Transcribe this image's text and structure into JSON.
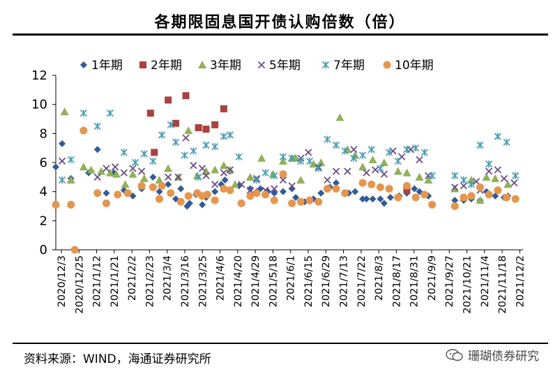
{
  "header": {
    "title": "各期限固息国开债认购倍数（倍）"
  },
  "footer": {
    "source": "资料来源：WIND，海通证券研究所",
    "watermark": "珊瑚债券研究"
  },
  "chart_data": {
    "type": "scatter",
    "title": "各期限固息国开债认购倍数（倍）",
    "ylim": [
      0,
      12
    ],
    "yticks": [
      0,
      2,
      4,
      6,
      8,
      10,
      12
    ],
    "xlim": [
      "2020-12-03",
      "2021-12-08"
    ],
    "x_tick_labels": [
      "2020/12/3",
      "2020/12/25",
      "2021/1/12",
      "2021/1/21",
      "2021/2/2",
      "2021/2/23",
      "2021/3/4",
      "2021/3/16",
      "2021/3/25",
      "2021/4/6",
      "2021/4/20",
      "2021/4/29",
      "2021/5/18",
      "2021/6/1",
      "2021/6/15",
      "2021/6/29",
      "2021/7/13",
      "2021/7/22",
      "2021/8/3",
      "2021/8/17",
      "2021/8/31",
      "2021/9/9",
      "2021/9/27",
      "2021/10/21",
      "2021/11/4",
      "2021/11/18",
      "2021/12/2"
    ],
    "legend_position": "top",
    "series": [
      {
        "name": "1年期",
        "marker": "diamond",
        "color": "#2E5B9F",
        "points": [
          [
            "2020-12-03",
            5.7
          ],
          [
            "2020-12-08",
            7.3
          ],
          [
            "2020-12-15",
            4.9
          ],
          [
            "2020-12-29",
            5.3
          ],
          [
            "2021-01-05",
            6.9
          ],
          [
            "2021-01-12",
            3.9
          ],
          [
            "2021-01-18",
            5.3
          ],
          [
            "2021-01-26",
            4.1
          ],
          [
            "2021-02-02",
            3.7
          ],
          [
            "2021-02-09",
            4.2
          ],
          [
            "2021-02-18",
            5.0
          ],
          [
            "2021-02-23",
            4.0
          ],
          [
            "2021-03-02",
            4.5
          ],
          [
            "2021-03-08",
            3.5
          ],
          [
            "2021-03-12",
            4.2
          ],
          [
            "2021-03-17",
            3.0
          ],
          [
            "2021-03-19",
            3.2
          ],
          [
            "2021-03-24",
            3.8
          ],
          [
            "2021-03-29",
            3.1
          ],
          [
            "2021-04-01",
            3.6
          ],
          [
            "2021-04-08",
            4.0
          ],
          [
            "2021-04-13",
            4.5
          ],
          [
            "2021-04-16",
            4.8
          ],
          [
            "2021-04-20",
            5.4
          ],
          [
            "2021-04-27",
            4.4
          ],
          [
            "2021-05-06",
            4.2
          ],
          [
            "2021-05-11",
            4.0
          ],
          [
            "2021-05-14",
            4.2
          ],
          [
            "2021-05-20",
            4.0
          ],
          [
            "2021-05-25",
            3.9
          ],
          [
            "2021-06-01",
            4.0
          ],
          [
            "2021-06-08",
            4.2
          ],
          [
            "2021-06-11",
            3.6
          ],
          [
            "2021-06-18",
            3.3
          ],
          [
            "2021-06-25",
            3.5
          ],
          [
            "2021-07-01",
            3.9
          ],
          [
            "2021-07-08",
            4.3
          ],
          [
            "2021-07-13",
            4.6
          ],
          [
            "2021-07-20",
            3.9
          ],
          [
            "2021-07-23",
            3.9
          ],
          [
            "2021-07-28",
            4.0
          ],
          [
            "2021-08-03",
            3.5
          ],
          [
            "2021-08-06",
            3.5
          ],
          [
            "2021-08-11",
            3.5
          ],
          [
            "2021-08-17",
            3.5
          ],
          [
            "2021-08-20",
            3.2
          ],
          [
            "2021-08-25",
            3.6
          ],
          [
            "2021-09-01",
            3.7
          ],
          [
            "2021-09-07",
            3.9
          ],
          [
            "2021-09-13",
            4.2
          ],
          [
            "2021-09-17",
            4.0
          ],
          [
            "2021-09-24",
            3.7
          ],
          [
            "2021-10-15",
            3.4
          ],
          [
            "2021-10-22",
            3.4
          ],
          [
            "2021-10-28",
            3.5
          ],
          [
            "2021-11-04",
            3.4
          ],
          [
            "2021-11-09",
            4.0
          ],
          [
            "2021-11-16",
            3.7
          ],
          [
            "2021-11-23",
            3.6
          ],
          [
            "2021-11-26",
            3.7
          ]
        ]
      },
      {
        "name": "2年期",
        "marker": "square",
        "color": "#B0403E",
        "points": [
          [
            "2021-02-16",
            9.4
          ],
          [
            "2021-02-19",
            6.7
          ],
          [
            "2021-03-02",
            10.3
          ],
          [
            "2021-03-08",
            8.7
          ],
          [
            "2021-03-16",
            10.6
          ],
          [
            "2021-03-26",
            8.4
          ],
          [
            "2021-04-01",
            8.3
          ],
          [
            "2021-04-08",
            8.6
          ],
          [
            "2021-04-15",
            9.7
          ],
          [
            "2021-09-07",
            4.1
          ]
        ]
      },
      {
        "name": "3年期",
        "marker": "triangle",
        "color": "#8FB354",
        "points": [
          [
            "2020-12-10",
            9.5
          ],
          [
            "2020-12-15",
            4.8
          ],
          [
            "2020-12-25",
            5.7
          ],
          [
            "2020-12-31",
            5.5
          ],
          [
            "2021-01-08",
            5.4
          ],
          [
            "2021-01-15",
            5.3
          ],
          [
            "2021-01-20",
            5.2
          ],
          [
            "2021-01-27",
            4.5
          ],
          [
            "2021-02-02",
            5.2
          ],
          [
            "2021-02-11",
            4.9
          ],
          [
            "2021-02-23",
            4.8
          ],
          [
            "2021-03-02",
            5.6
          ],
          [
            "2021-03-10",
            5.0
          ],
          [
            "2021-03-18",
            8.2
          ],
          [
            "2021-03-25",
            5.1
          ],
          [
            "2021-04-01",
            5.4
          ],
          [
            "2021-04-08",
            5.5
          ],
          [
            "2021-04-15",
            5.8
          ],
          [
            "2021-04-20",
            5.5
          ],
          [
            "2021-04-24",
            4.5
          ],
          [
            "2021-05-06",
            5.0
          ],
          [
            "2021-05-15",
            6.3
          ],
          [
            "2021-05-24",
            5.2
          ],
          [
            "2021-06-01",
            6.1
          ],
          [
            "2021-06-08",
            6.3
          ],
          [
            "2021-06-11",
            6.3
          ],
          [
            "2021-06-15",
            4.8
          ],
          [
            "2021-06-25",
            5.9
          ],
          [
            "2021-07-01",
            6.0
          ],
          [
            "2021-07-16",
            9.1
          ],
          [
            "2021-07-22",
            6.9
          ],
          [
            "2021-07-28",
            6.5
          ],
          [
            "2021-08-03",
            5.7
          ],
          [
            "2021-08-11",
            6.2
          ],
          [
            "2021-08-20",
            6.0
          ],
          [
            "2021-08-31",
            5.4
          ],
          [
            "2021-09-07",
            5.3
          ],
          [
            "2021-09-17",
            5.0
          ],
          [
            "2021-09-24",
            4.8
          ],
          [
            "2021-10-15",
            4.2
          ],
          [
            "2021-10-22",
            3.6
          ],
          [
            "2021-10-28",
            4.8
          ],
          [
            "2021-11-04",
            3.4
          ],
          [
            "2021-11-09",
            5.0
          ],
          [
            "2021-11-16",
            4.9
          ],
          [
            "2021-11-26",
            4.5
          ]
        ]
      },
      {
        "name": "5年期",
        "marker": "x",
        "color": "#6C4A8E",
        "points": [
          [
            "2020-12-08",
            6.1
          ],
          [
            "2021-01-05",
            5.0
          ],
          [
            "2021-01-12",
            5.6
          ],
          [
            "2021-01-19",
            5.7
          ],
          [
            "2021-01-26",
            5.3
          ],
          [
            "2021-02-02",
            5.6
          ],
          [
            "2021-02-09",
            5.4
          ],
          [
            "2021-03-02",
            5.0
          ],
          [
            "2021-03-10",
            5.0
          ],
          [
            "2021-03-16",
            7.7
          ],
          [
            "2021-03-22",
            5.8
          ],
          [
            "2021-03-29",
            5.6
          ],
          [
            "2021-04-01",
            5.1
          ],
          [
            "2021-04-08",
            4.5
          ],
          [
            "2021-04-15",
            5.3
          ],
          [
            "2021-04-20",
            5.5
          ],
          [
            "2021-04-29",
            4.5
          ],
          [
            "2021-05-06",
            4.1
          ],
          [
            "2021-05-11",
            4.9
          ],
          [
            "2021-05-18",
            4.1
          ],
          [
            "2021-05-25",
            4.2
          ],
          [
            "2021-06-01",
            4.8
          ],
          [
            "2021-06-08",
            4.4
          ],
          [
            "2021-06-15",
            6.3
          ],
          [
            "2021-06-21",
            6.7
          ],
          [
            "2021-06-29",
            5.7
          ],
          [
            "2021-07-06",
            4.8
          ],
          [
            "2021-07-13",
            5.4
          ],
          [
            "2021-07-22",
            5.4
          ],
          [
            "2021-07-27",
            6.9
          ],
          [
            "2021-08-06",
            5.3
          ],
          [
            "2021-08-13",
            5.5
          ],
          [
            "2021-08-20",
            5.2
          ],
          [
            "2021-08-27",
            6.8
          ],
          [
            "2021-09-03",
            6.4
          ],
          [
            "2021-09-10",
            6.9
          ],
          [
            "2021-09-17",
            6.2
          ],
          [
            "2021-09-24",
            5.1
          ],
          [
            "2021-10-15",
            4.3
          ],
          [
            "2021-10-22",
            4.4
          ],
          [
            "2021-11-01",
            4.7
          ],
          [
            "2021-11-04",
            4.1
          ],
          [
            "2021-11-11",
            5.4
          ],
          [
            "2021-11-18",
            5.5
          ],
          [
            "2021-11-23",
            4.9
          ],
          [
            "2021-12-01",
            4.6
          ]
        ]
      },
      {
        "name": "7年期",
        "marker": "asterisk",
        "color": "#3E9FB7",
        "points": [
          [
            "2020-12-08",
            4.8
          ],
          [
            "2020-12-15",
            6.2
          ],
          [
            "2020-12-25",
            9.4
          ],
          [
            "2021-01-05",
            8.5
          ],
          [
            "2021-01-15",
            9.4
          ],
          [
            "2021-01-26",
            6.7
          ],
          [
            "2021-02-04",
            6.0
          ],
          [
            "2021-02-11",
            6.6
          ],
          [
            "2021-02-18",
            6.1
          ],
          [
            "2021-02-25",
            7.9
          ],
          [
            "2021-03-04",
            8.6
          ],
          [
            "2021-03-08",
            7.4
          ],
          [
            "2021-03-15",
            6.5
          ],
          [
            "2021-03-22",
            6.8
          ],
          [
            "2021-03-26",
            5.0
          ],
          [
            "2021-04-01",
            7.2
          ],
          [
            "2021-04-08",
            7.1
          ],
          [
            "2021-04-15",
            7.8
          ],
          [
            "2021-04-20",
            7.9
          ],
          [
            "2021-04-27",
            6.4
          ],
          [
            "2021-05-11",
            4.8
          ],
          [
            "2021-05-18",
            5.3
          ],
          [
            "2021-05-25",
            5.1
          ],
          [
            "2021-06-01",
            6.4
          ],
          [
            "2021-06-08",
            6.3
          ],
          [
            "2021-06-15",
            6.1
          ],
          [
            "2021-06-22",
            6.1
          ],
          [
            "2021-06-29",
            5.6
          ],
          [
            "2021-07-06",
            7.6
          ],
          [
            "2021-07-13",
            7.2
          ],
          [
            "2021-07-20",
            6.8
          ],
          [
            "2021-07-27",
            6.3
          ],
          [
            "2021-08-03",
            6.5
          ],
          [
            "2021-08-10",
            6.9
          ],
          [
            "2021-08-17",
            5.6
          ],
          [
            "2021-08-24",
            6.7
          ],
          [
            "2021-08-31",
            6.1
          ],
          [
            "2021-09-07",
            6.9
          ],
          [
            "2021-09-14",
            7.0
          ],
          [
            "2021-09-21",
            6.7
          ],
          [
            "2021-09-27",
            5.1
          ],
          [
            "2021-10-15",
            5.1
          ],
          [
            "2021-10-22",
            4.8
          ],
          [
            "2021-10-28",
            4.5
          ],
          [
            "2021-11-04",
            7.2
          ],
          [
            "2021-11-11",
            5.9
          ],
          [
            "2021-11-18",
            7.8
          ],
          [
            "2021-11-25",
            7.4
          ],
          [
            "2021-12-02",
            5.1
          ]
        ]
      },
      {
        "name": "10年期",
        "marker": "circle",
        "color": "#E8954A",
        "points": [
          [
            "2020-12-03",
            3.1
          ],
          [
            "2020-12-15",
            3.1
          ],
          [
            "2020-12-18",
            0.0
          ],
          [
            "2020-12-25",
            8.2
          ],
          [
            "2021-01-05",
            3.9
          ],
          [
            "2021-01-12",
            3.2
          ],
          [
            "2021-01-21",
            3.8
          ],
          [
            "2021-01-29",
            3.9
          ],
          [
            "2021-02-09",
            4.4
          ],
          [
            "2021-02-18",
            4.3
          ],
          [
            "2021-02-23",
            3.5
          ],
          [
            "2021-02-25",
            4.4
          ],
          [
            "2021-03-04",
            3.9
          ],
          [
            "2021-03-12",
            3.3
          ],
          [
            "2021-03-18",
            3.7
          ],
          [
            "2021-03-25",
            3.9
          ],
          [
            "2021-03-29",
            3.7
          ],
          [
            "2021-04-02",
            3.8
          ],
          [
            "2021-04-08",
            3.4
          ],
          [
            "2021-04-15",
            4.2
          ],
          [
            "2021-04-20",
            4.1
          ],
          [
            "2021-04-29",
            3.2
          ],
          [
            "2021-05-06",
            3.7
          ],
          [
            "2021-05-11",
            3.9
          ],
          [
            "2021-05-18",
            3.8
          ],
          [
            "2021-05-25",
            3.4
          ],
          [
            "2021-06-01",
            5.2
          ],
          [
            "2021-06-08",
            3.2
          ],
          [
            "2021-06-15",
            3.3
          ],
          [
            "2021-06-22",
            3.4
          ],
          [
            "2021-06-29",
            3.3
          ],
          [
            "2021-07-06",
            4.2
          ],
          [
            "2021-07-13",
            4.2
          ],
          [
            "2021-07-20",
            3.9
          ],
          [
            "2021-08-03",
            4.6
          ],
          [
            "2021-08-10",
            4.5
          ],
          [
            "2021-08-17",
            4.3
          ],
          [
            "2021-08-24",
            4.2
          ],
          [
            "2021-08-31",
            3.6
          ],
          [
            "2021-09-07",
            4.4
          ],
          [
            "2021-09-14",
            3.6
          ],
          [
            "2021-09-21",
            3.8
          ],
          [
            "2021-09-27",
            3.1
          ],
          [
            "2021-10-15",
            3.0
          ],
          [
            "2021-10-22",
            3.6
          ],
          [
            "2021-10-28",
            3.7
          ],
          [
            "2021-11-04",
            4.3
          ],
          [
            "2021-11-11",
            3.8
          ],
          [
            "2021-11-18",
            4.1
          ],
          [
            "2021-11-25",
            3.6
          ],
          [
            "2021-12-02",
            3.5
          ]
        ]
      }
    ]
  }
}
